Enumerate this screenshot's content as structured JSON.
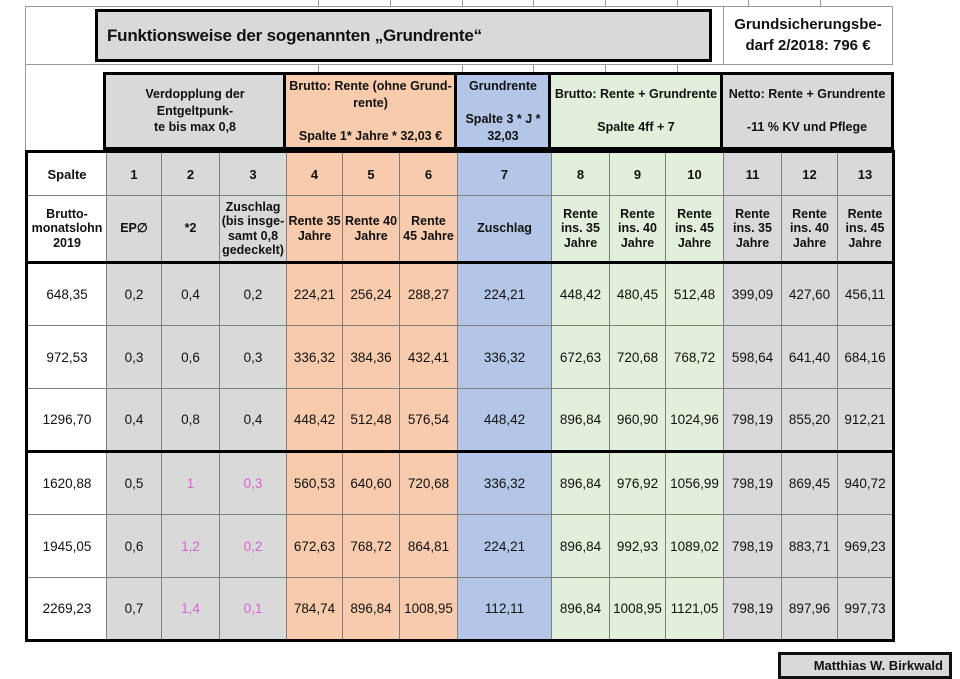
{
  "title": "Funktionsweise der sogenannten „Grundrente“",
  "note_right": "Grundsicherungsbe-\ndarf 2/2018: 796 €",
  "credit": "Matthias W. Birkwald",
  "groups": [
    {
      "name": "verdopplung-entgeltpunkte",
      "label": "Verdopplung der Entgeltpunk-\nte bis max 0,8",
      "color": "#d9d9d9"
    },
    {
      "name": "brutto-rente-ohne-grundrente",
      "label": "Brutto: Rente (ohne Grund-\nrente)\n\nSpalte 1* Jahre * 32,03 €",
      "color": "#f8cbad"
    },
    {
      "name": "grundrente",
      "label": "Grundrente\n\nSpalte 3 * J *\n32,03",
      "color": "#b4c6e7"
    },
    {
      "name": "brutto-rente-plus-grundrente",
      "label": "Brutto: Rente + Grundrente\n\nSpalte 4ff + 7",
      "color": "#e2efda"
    },
    {
      "name": "netto-rente-plus-grundrente",
      "label": "Netto: Rente + Grundrente\n\n-11 % KV und Pflege",
      "color": "#d9d9d9"
    }
  ],
  "spalte_row": [
    "Spalte",
    "1",
    "2",
    "3",
    "4",
    "5",
    "6",
    "7",
    "8",
    "9",
    "10",
    "11",
    "12",
    "13"
  ],
  "header_row": [
    "Brutto-\nmonatslohn\n2019",
    "EP∅",
    "*2",
    "Zuschlag\n(bis insge-\nsamt 0,8\ngedeckelt)",
    "Rente 35\nJahre",
    "Rente 40\nJahre",
    "Rente\n45 Jahre",
    "Zuschlag",
    "Rente\nins. 35\nJahre",
    "Rente\nins. 40\nJahre",
    "Rente\nins. 45\nJahre",
    "Rente\nins. 35\nJahre",
    "Rente\nins. 40\nJahre",
    "Rente\nins. 45\nJahre"
  ],
  "rows": [
    {
      "cells": [
        "648,35",
        "0,2",
        "0,4",
        "0,2",
        "224,21",
        "256,24",
        "288,27",
        "224,21",
        "448,42",
        "480,45",
        "512,48",
        "399,09",
        "427,60",
        "456,11"
      ],
      "magenta_cols": []
    },
    {
      "cells": [
        "972,53",
        "0,3",
        "0,6",
        "0,3",
        "336,32",
        "384,36",
        "432,41",
        "336,32",
        "672,63",
        "720,68",
        "768,72",
        "598,64",
        "641,40",
        "684,16"
      ],
      "magenta_cols": []
    },
    {
      "cells": [
        "1296,70",
        "0,4",
        "0,8",
        "0,4",
        "448,42",
        "512,48",
        "576,54",
        "448,42",
        "896,84",
        "960,90",
        "1024,96",
        "798,19",
        "855,20",
        "912,21"
      ],
      "magenta_cols": []
    },
    {
      "cells": [
        "1620,88",
        "0,5",
        "1",
        "0,3",
        "560,53",
        "640,60",
        "720,68",
        "336,32",
        "896,84",
        "976,92",
        "1056,99",
        "798,19",
        "869,45",
        "940,72"
      ],
      "magenta_cols": [
        2,
        3
      ]
    },
    {
      "cells": [
        "1945,05",
        "0,6",
        "1,2",
        "0,2",
        "672,63",
        "768,72",
        "864,81",
        "224,21",
        "896,84",
        "992,93",
        "1089,02",
        "798,19",
        "883,71",
        "969,23"
      ],
      "magenta_cols": [
        2,
        3
      ]
    },
    {
      "cells": [
        "2269,23",
        "0,7",
        "1,4",
        "0,1",
        "784,74",
        "896,84",
        "1008,95",
        "112,11",
        "896,84",
        "1008,95",
        "1121,05",
        "798,19",
        "897,96",
        "997,73"
      ],
      "magenta_cols": [
        2,
        3
      ]
    }
  ],
  "colors": {
    "group_gray": "#d9d9d9",
    "orange": "#f8cbad",
    "blue": "#b4c6e7",
    "green": "#e2efda",
    "magenta_text": "#da62d4",
    "thick_border": "#000000",
    "gridline": "#808080"
  }
}
